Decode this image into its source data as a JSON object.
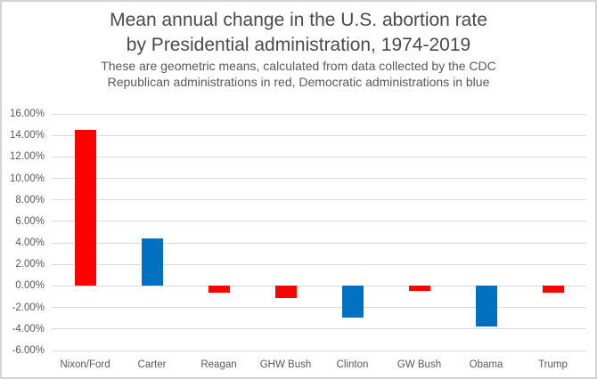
{
  "title": {
    "line1": "Mean annual change in the U.S. abortion rate",
    "line2": "by Presidential administration, 1974-2019"
  },
  "subtitle": {
    "line1": "These are geometric means, calculated from data collected by the CDC",
    "line2": "Republican administrations in red, Democratic administrations in blue"
  },
  "chart_data": {
    "type": "bar",
    "title": "Mean annual change in the U.S. abortion rate by Presidential administration, 1974-2019",
    "subtitle": "These are geometric means, calculated from data collected by the CDC. Republican administrations in red, Democratic administrations in blue",
    "categories": [
      "Nixon/Ford",
      "Carter",
      "Reagan",
      "GHW Bush",
      "Clinton",
      "GW Bush",
      "Obama",
      "Trump"
    ],
    "values": [
      14.5,
      4.4,
      -0.6,
      -1.1,
      -2.9,
      -0.5,
      -3.8,
      -0.6
    ],
    "values_unit": "percent",
    "parties": [
      "republican",
      "democratic",
      "republican",
      "republican",
      "democratic",
      "republican",
      "democratic",
      "republican"
    ],
    "xlabel": "",
    "ylabel": "",
    "ylim": [
      -6,
      16
    ],
    "ytick_step": 2,
    "ytick_labels": [
      "16.00%",
      "14.00%",
      "12.00%",
      "10.00%",
      "8.00%",
      "6.00%",
      "4.00%",
      "2.00%",
      "0.00%",
      "-2.00%",
      "-4.00%",
      "-6.00%"
    ],
    "grid": true,
    "legend_position": "none"
  },
  "colors": {
    "republican": "#FF0000",
    "democratic": "#0070C0",
    "gridline": "#D9D9D9",
    "axis_text": "#595959",
    "title_text": "#4A4A4A",
    "border": "#D4D4D4",
    "background": "#FFFFFF"
  }
}
